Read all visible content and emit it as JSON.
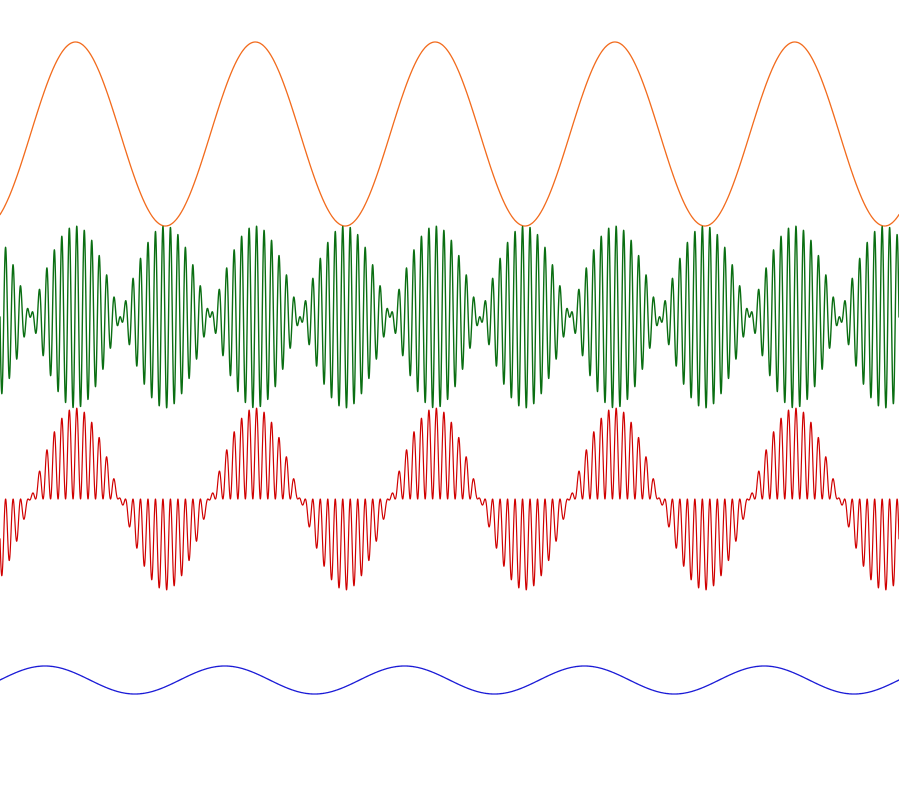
{
  "chart_data": {
    "type": "line",
    "title": "",
    "xlabel": "",
    "ylabel": "",
    "grid": false,
    "legend": "none",
    "x_range": [
      0,
      10
    ],
    "series": [
      {
        "key": "orange",
        "color": "#f26b1d",
        "kind": "sine",
        "cycles": 5,
        "phase_offset": -0.17,
        "amplitude": 1.0,
        "y_range": [
          -1,
          1
        ]
      },
      {
        "key": "green",
        "color": "#0a6e12",
        "kind": "am-dsb",
        "envelope_cycles": 5,
        "carrier_cycles": 120,
        "phase_offset": -0.17,
        "amplitude": 1.0,
        "y_range": [
          -1,
          1
        ]
      },
      {
        "key": "red",
        "color": "#d00000",
        "kind": "am-modulated",
        "envelope_cycles": 5,
        "carrier_cycles": 120,
        "phase_offset": -0.17,
        "amplitude": 1.0,
        "y_range": [
          -1,
          1
        ]
      },
      {
        "key": "blue",
        "color": "#1a1ad6",
        "kind": "sine",
        "cycles": 5,
        "phase_offset": 0.0,
        "amplitude": 0.15,
        "y_range": [
          -1,
          1
        ]
      }
    ]
  }
}
